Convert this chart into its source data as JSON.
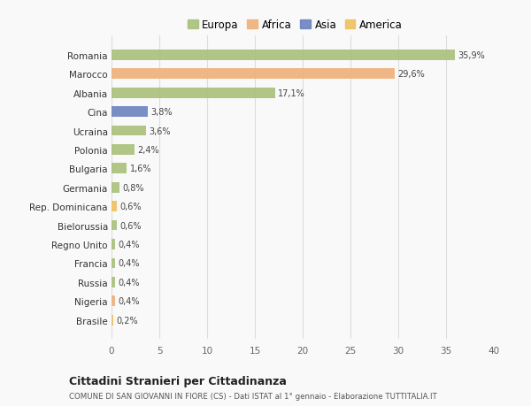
{
  "countries": [
    "Romania",
    "Marocco",
    "Albania",
    "Cina",
    "Ucraina",
    "Polonia",
    "Bulgaria",
    "Germania",
    "Rep. Dominicana",
    "Bielorussia",
    "Regno Unito",
    "Francia",
    "Russia",
    "Nigeria",
    "Brasile"
  ],
  "values": [
    35.9,
    29.6,
    17.1,
    3.8,
    3.6,
    2.4,
    1.6,
    0.8,
    0.6,
    0.6,
    0.4,
    0.4,
    0.4,
    0.4,
    0.2
  ],
  "labels": [
    "35,9%",
    "29,6%",
    "17,1%",
    "3,8%",
    "3,6%",
    "2,4%",
    "1,6%",
    "0,8%",
    "0,6%",
    "0,6%",
    "0,4%",
    "0,4%",
    "0,4%",
    "0,4%",
    "0,2%"
  ],
  "colors": [
    "#a8c07a",
    "#f0b07a",
    "#a8c07a",
    "#6a83c0",
    "#a8c07a",
    "#a8c07a",
    "#a8c07a",
    "#a8c07a",
    "#f0c060",
    "#a8c07a",
    "#a8c07a",
    "#a8c07a",
    "#a8c07a",
    "#f0b07a",
    "#f0c060"
  ],
  "continent_colors": {
    "Europa": "#a8c07a",
    "Africa": "#f0b07a",
    "Asia": "#6a83c0",
    "America": "#f0c060"
  },
  "xlim": [
    0,
    40
  ],
  "xticks": [
    0,
    5,
    10,
    15,
    20,
    25,
    30,
    35,
    40
  ],
  "title": "Cittadini Stranieri per Cittadinanza",
  "subtitle": "COMUNE DI SAN GIOVANNI IN FIORE (CS) - Dati ISTAT al 1° gennaio - Elaborazione TUTTITALIA.IT",
  "background_color": "#f9f9f9",
  "grid_color": "#dddddd",
  "bar_height": 0.55
}
